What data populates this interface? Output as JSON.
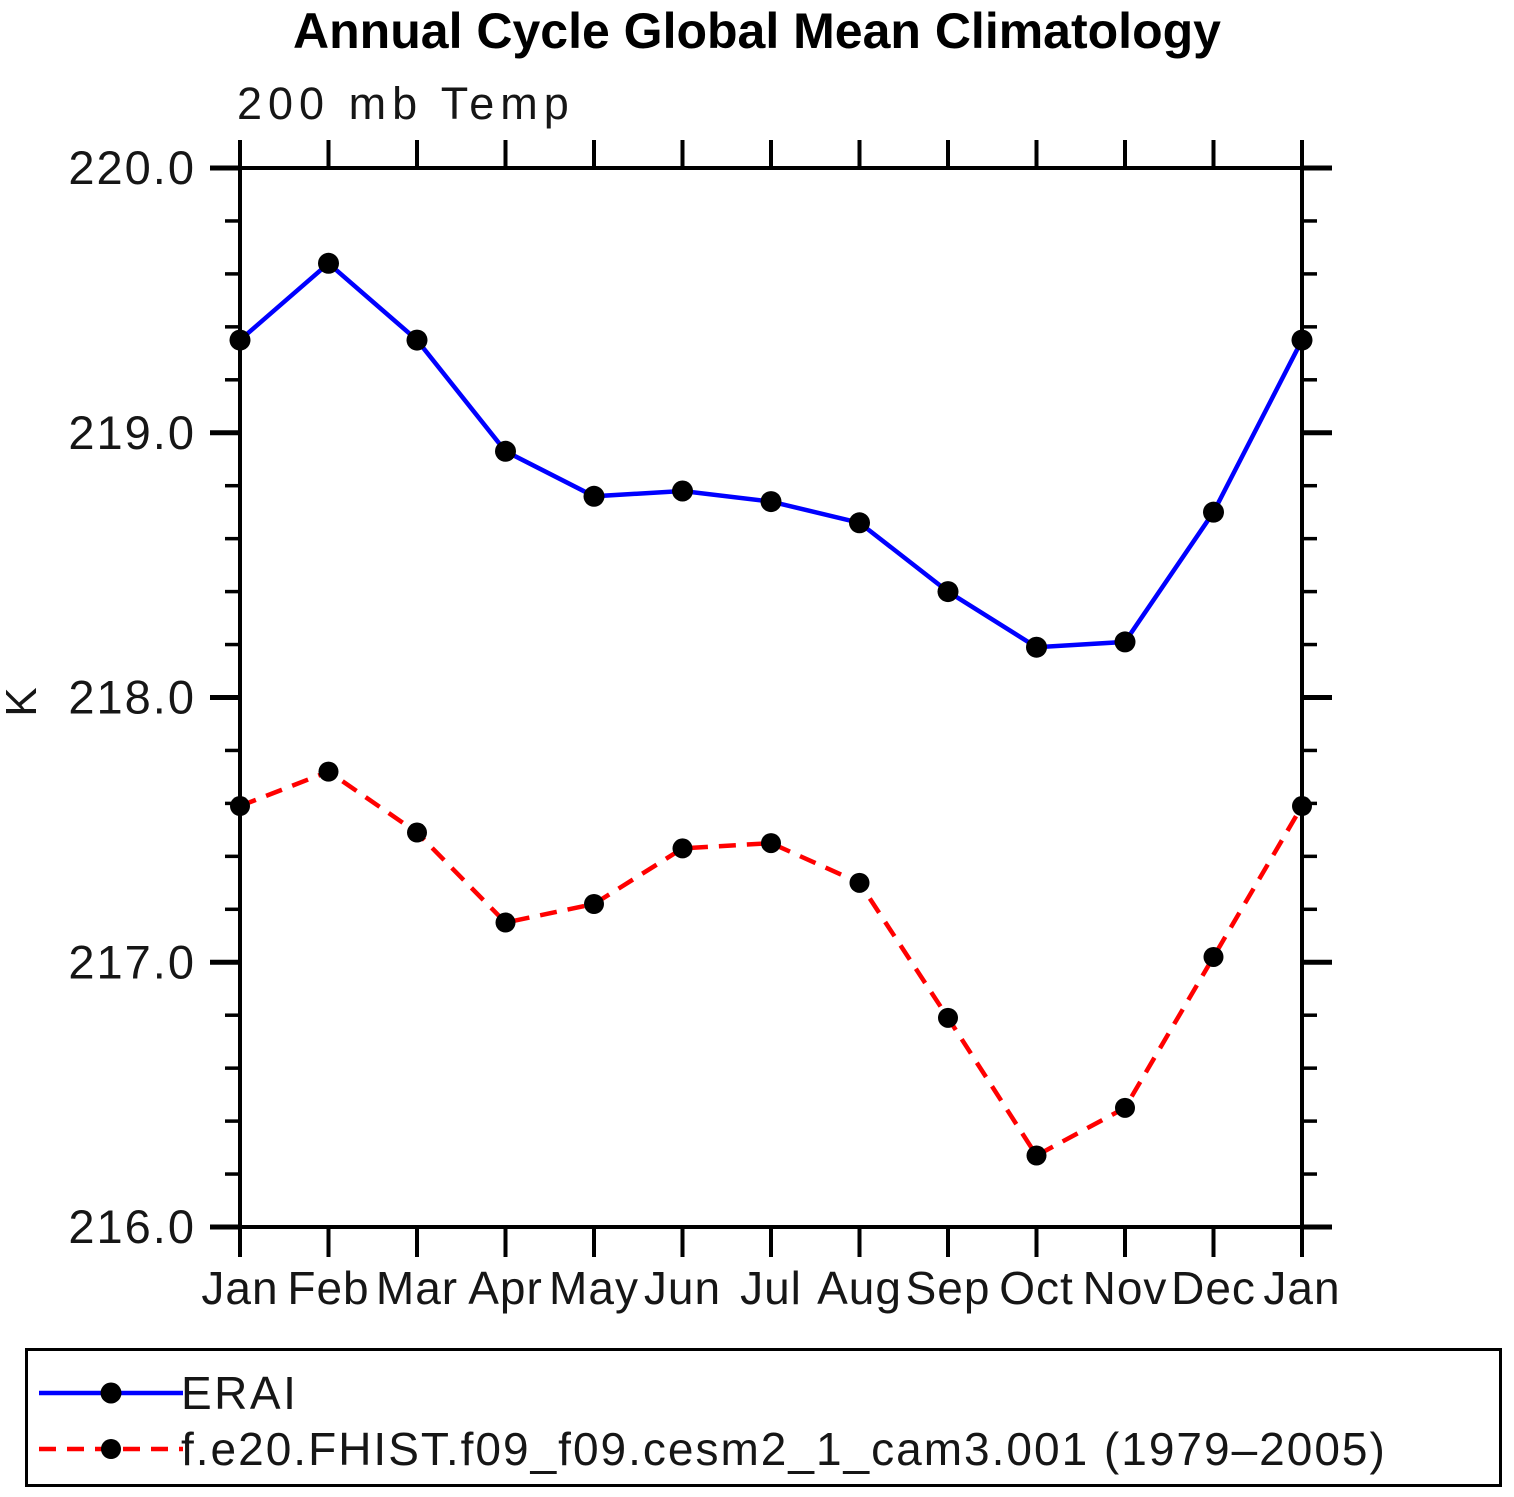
{
  "chart_data": {
    "type": "line",
    "title": "Annual Cycle Global Mean Climatology",
    "subtitle": "200 mb Temp",
    "ylabel": "K",
    "ylim": [
      216.0,
      220.0
    ],
    "ytick_major": 1.0,
    "ytick_minor": 0.2,
    "ytick_label_format": "one-decimal",
    "grid": false,
    "legend_position": "bottom-box",
    "categories": [
      "Jan",
      "Feb",
      "Mar",
      "Apr",
      "May",
      "Jun",
      "Jul",
      "Aug",
      "Sep",
      "Oct",
      "Nov",
      "Dec",
      "Jan"
    ],
    "series": [
      {
        "name": "ERAI",
        "color": "#0000ff",
        "line_style": "solid",
        "marker": "filled-circle",
        "marker_color": "#000000",
        "values": [
          219.35,
          219.64,
          219.35,
          218.93,
          218.76,
          218.78,
          218.74,
          218.66,
          218.4,
          218.19,
          218.21,
          218.7,
          219.35
        ]
      },
      {
        "name": "f.e20.FHIST.f09_f09.cesm2_1_cam3.001 (1979–2005)",
        "color": "#ff0000",
        "line_style": "dashed",
        "marker": "filled-circle",
        "marker_color": "#000000",
        "values": [
          217.59,
          217.72,
          217.49,
          217.15,
          217.22,
          217.43,
          217.45,
          217.3,
          216.79,
          216.27,
          216.45,
          217.02,
          217.59
        ]
      }
    ]
  }
}
